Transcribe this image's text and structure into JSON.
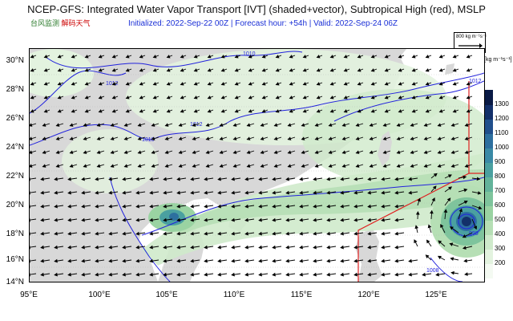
{
  "header": {
    "title": "NCEP-GFS: Integrated Water Vapor Transport [IVT] (shaded+vector), Subtropical High (red), MSLP",
    "subtitle": "Initialized: 2022-Sep-22 00Z  |  Forecast hour: +54h  |  Valid: 2022-Sep-24 06Z"
  },
  "logo": {
    "text_a": "台风监测",
    "text_b": "解码天气",
    "watermark": "台风监测"
  },
  "scale_vector": {
    "label": "800 kg m⁻¹s⁻¹"
  },
  "colorbar": {
    "unit": "[kg m⁻¹s⁻¹]",
    "levels": [
      "200",
      "300",
      "400",
      "500",
      "600",
      "700",
      "800",
      "900",
      "1000",
      "1100",
      "1200",
      "1300"
    ],
    "colors": [
      "#f4faf2",
      "#e3f3df",
      "#cfeacb",
      "#b6dfb5",
      "#9ad3a2",
      "#7ec49c",
      "#63b39b",
      "#4aa0a0",
      "#3a8aa6",
      "#2d6f9f",
      "#204f8c",
      "#13306a",
      "#0a1a45"
    ]
  },
  "axes": {
    "lat_labels": [
      "30°N",
      "28°N",
      "26°N",
      "24°N",
      "22°N",
      "20°N",
      "18°N",
      "16°N",
      "14°N"
    ],
    "lon_labels": [
      "95°E",
      "100°E",
      "105°E",
      "110°E",
      "115°E",
      "120°E",
      "125°E"
    ]
  },
  "isobars": [
    "1010",
    "1012",
    "1012",
    "1012",
    "1010",
    "1004",
    "1008",
    "998"
  ],
  "map_colors": {
    "land": "#d8d8d8",
    "sea": "#ffffff",
    "isobar": "#2222dd",
    "subtropical_high": "#e02020"
  }
}
